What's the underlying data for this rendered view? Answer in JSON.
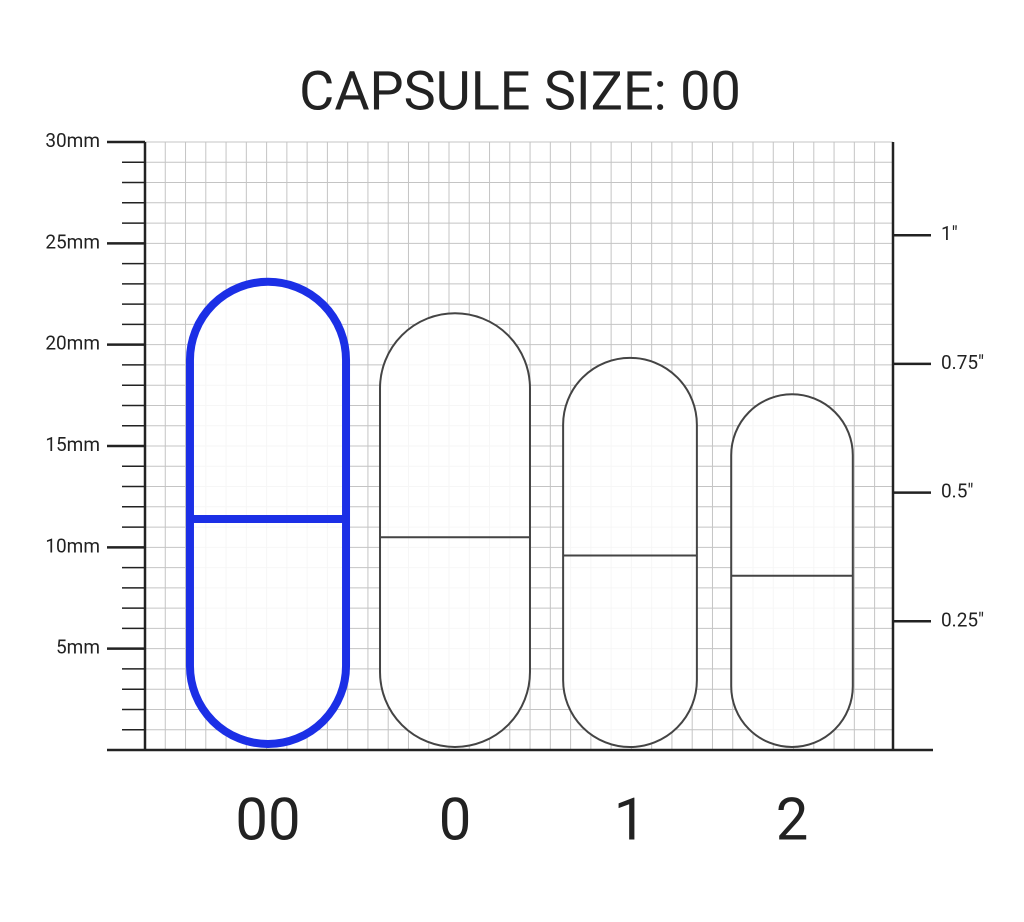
{
  "chart_data": {
    "type": "capsule",
    "title": "CAPSULE SIZE: 00",
    "categories": [
      "00",
      "0",
      "1",
      "2"
    ],
    "values": [
      23.3,
      21.6,
      19.4,
      17.6
    ],
    "seams": [
      11.4,
      10.5,
      9.6,
      8.6
    ],
    "widths": [
      7.7,
      7.4,
      6.6,
      6.0
    ],
    "color": "#444444",
    "highlight_color": "#1b2fe6",
    "highlight": 0,
    "ylim": [
      0,
      30
    ],
    "yticks": [
      {
        "value": 5,
        "label": "5mm"
      },
      {
        "value": 10,
        "label": "10mm"
      },
      {
        "value": 15,
        "label": "15mm"
      },
      {
        "value": 20,
        "label": "20mm"
      },
      {
        "value": 25,
        "label": "25mm"
      },
      {
        "value": 30,
        "label": "30mm"
      }
    ],
    "y2lim": [
      0,
      1.1811
    ],
    "y2ticks": [
      {
        "value": 0.25,
        "label": "0.25″"
      },
      {
        "value": 0.5,
        "label": "0.5″"
      },
      {
        "value": 0.75,
        "label": "0.75″"
      },
      {
        "value": 1,
        "label": "1″"
      }
    ],
    "grid": true
  }
}
